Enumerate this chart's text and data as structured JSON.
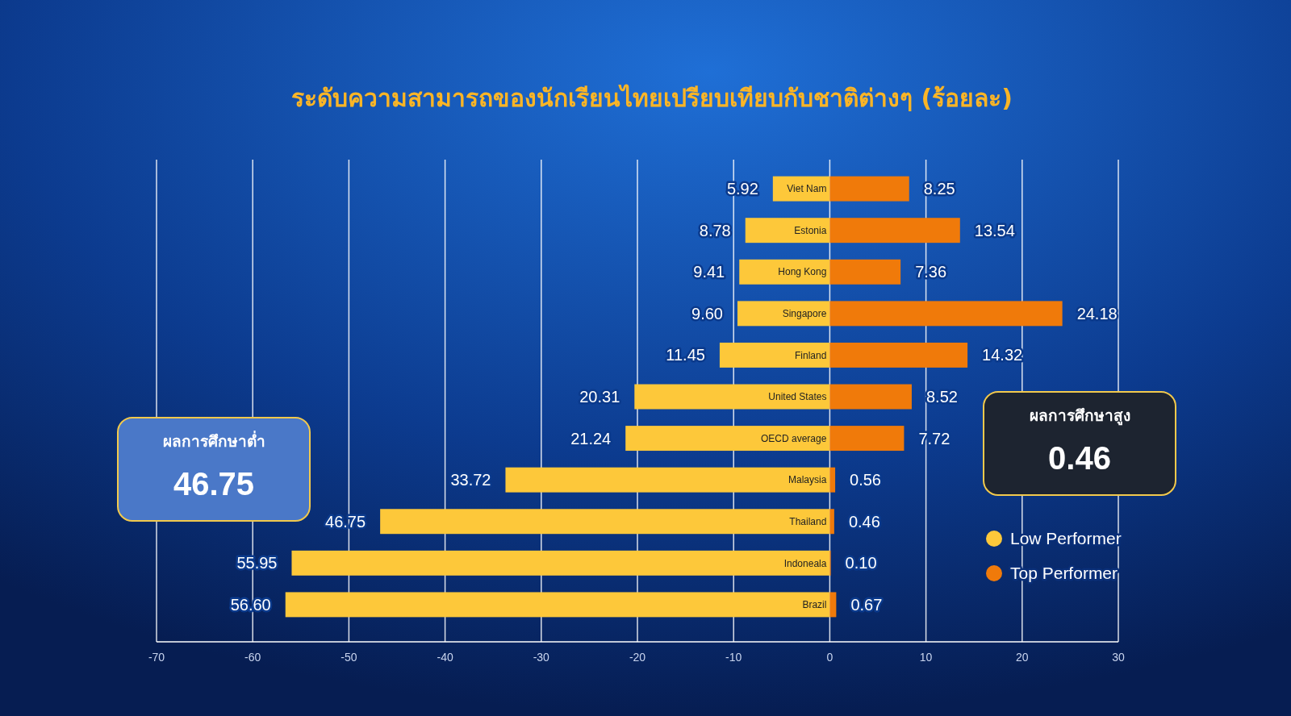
{
  "chart_data": {
    "type": "bar",
    "orientation": "horizontal",
    "title": "ระดับความสามารถของนักเรียนไทยเปรียบเทียบกับชาติต่างๆ (ร้อยละ)",
    "categories": [
      "Viet Nam",
      "Estonia",
      "Hong Kong",
      "Singapore",
      "Finland",
      "United States",
      "OECD average",
      "Malaysia",
      "Thailand",
      "Indoneala",
      "Brazil"
    ],
    "series": [
      {
        "name": "Low Performer",
        "color": "#fdc83a",
        "base": [
          -5.92,
          -8.78,
          -9.41,
          -9.6,
          -11.45,
          -20.31,
          -21.24,
          -33.72,
          -46.75,
          -55.95,
          -56.6
        ],
        "values": [
          5.92,
          8.78,
          9.41,
          9.6,
          11.45,
          20.31,
          21.24,
          33.72,
          46.75,
          55.95,
          56.6
        ],
        "value_labels": [
          "5.92",
          "8.78",
          "9.41",
          "9.60",
          "11.45",
          "20.31",
          "21.24",
          "33.72",
          "46.75",
          "55.95",
          "56.60"
        ]
      },
      {
        "name": "Top Performer",
        "color": "#f07a0a",
        "values": [
          8.25,
          13.54,
          7.36,
          24.18,
          14.32,
          8.52,
          7.72,
          0.56,
          0.46,
          0.1,
          0.67
        ],
        "value_labels": [
          "8.25",
          "13.54",
          "7.36",
          "24.18",
          "14.32",
          "8.52",
          "7.72",
          "0.56",
          "0.46",
          "0.10",
          "0.67"
        ]
      }
    ],
    "xlim": [
      -70,
      30
    ],
    "xticks": [
      -70,
      -60,
      -50,
      -40,
      -30,
      -20,
      -10,
      0,
      10,
      20,
      30
    ],
    "grid": "x",
    "legend": "right",
    "annotations": [
      "ผลการศึกษาต่ำ 46.75",
      "ผลการศึกษาสูง 0.46"
    ]
  }
}
